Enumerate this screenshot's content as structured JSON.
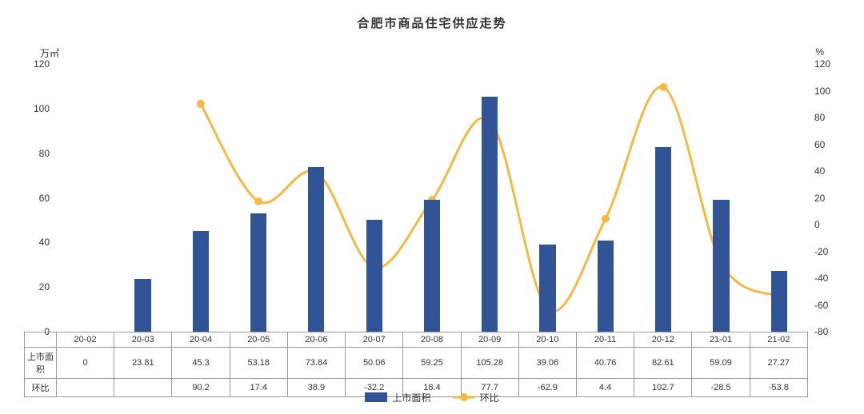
{
  "title": "合肥市商品住宅供应走势",
  "leftAxis": {
    "unit": "万㎡",
    "min": 0,
    "max": 120,
    "step": 20,
    "ticks": [
      0,
      20,
      40,
      60,
      80,
      100,
      120
    ]
  },
  "rightAxis": {
    "unit": "%",
    "min": -80,
    "max": 120,
    "step": 20,
    "ticks": [
      -80,
      -60,
      -40,
      -20,
      0,
      20,
      40,
      60,
      80,
      100,
      120
    ]
  },
  "categories": [
    "20-02",
    "20-03",
    "20-04",
    "20-05",
    "20-06",
    "20-07",
    "20-08",
    "20-09",
    "20-10",
    "20-11",
    "20-12",
    "21-01",
    "21-02"
  ],
  "series": {
    "bar": {
      "name": "上市面积",
      "color": "#305496",
      "values": [
        0,
        23.81,
        45.3,
        53.18,
        73.84,
        50.06,
        59.25,
        105.28,
        39.06,
        40.76,
        82.61,
        59.09,
        27.27
      ]
    },
    "line": {
      "name": "环比",
      "color": "#f4b942",
      "lineWidth": 3,
      "markerRadius": 5,
      "values": [
        null,
        null,
        90.2,
        17.4,
        38.9,
        -32.2,
        18.4,
        77.7,
        -62.9,
        4.4,
        102.7,
        -28.5,
        -53.8
      ]
    }
  },
  "tableRowHeaders": [
    "上市面积",
    "环比"
  ],
  "barWidthRatio": 0.28,
  "colors": {
    "bar": "#305496",
    "line": "#f4b942",
    "axis": "#999999",
    "text": "#333333",
    "background": "#ffffff"
  },
  "typography": {
    "title_fontsize": 15,
    "axis_fontsize": 12,
    "table_fontsize": 11
  }
}
